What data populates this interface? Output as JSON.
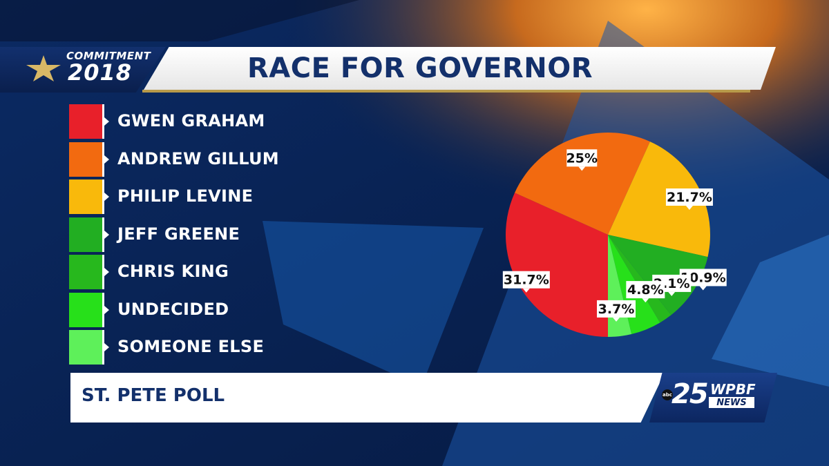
{
  "header": {
    "brand_top": "COMMITMENT",
    "brand_year": "2018",
    "title": "RACE FOR GOVERNOR"
  },
  "footer": {
    "source": "ST. PETE POLL",
    "logo_number": "25",
    "logo_call": "WPBF",
    "logo_news": "NEWS",
    "logo_network": "abc"
  },
  "chart_data": {
    "type": "pie",
    "title": "RACE FOR GOVERNOR",
    "legend_position": "left",
    "slices": [
      {
        "name": "GWEN GRAHAM",
        "value": 31.7,
        "label": "31.7%",
        "color": "#e8202a"
      },
      {
        "name": "ANDREW GILLUM",
        "value": 25,
        "label": "25%",
        "color": "#f26a10"
      },
      {
        "name": "PHILIP LEVINE",
        "value": 21.7,
        "label": "21.7%",
        "color": "#f9b90b"
      },
      {
        "name": "JEFF GREENE",
        "value": 10.9,
        "label": "10.9%",
        "color": "#22ae22"
      },
      {
        "name": "CHRIS KING",
        "value": 2.1,
        "label": "2.1%",
        "color": "#27b81d"
      },
      {
        "name": "UNDECIDED",
        "value": 4.8,
        "label": "4.8%",
        "color": "#27e01a"
      },
      {
        "name": "SOMEONE ELSE",
        "value": 3.7,
        "label": "3.7%",
        "color": "#5ef05a"
      }
    ]
  }
}
